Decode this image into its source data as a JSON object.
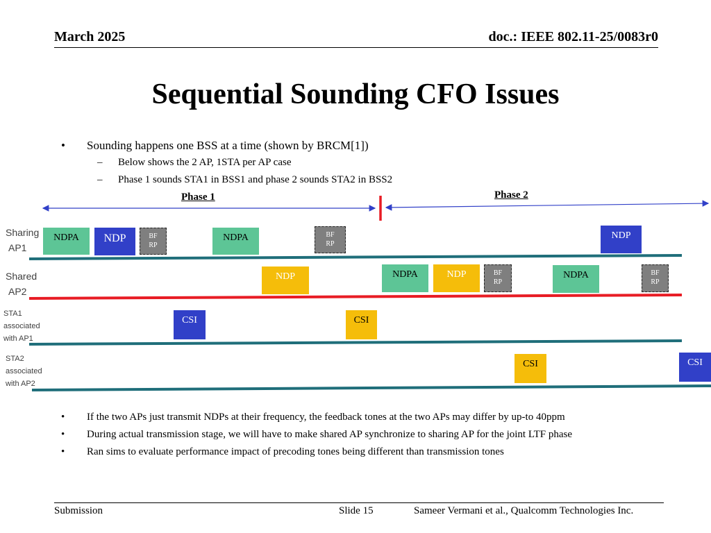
{
  "header": {
    "date": "March 2025",
    "doc": "doc.: IEEE 802.11-25/0083r0"
  },
  "title": "Sequential Sounding CFO Issues",
  "top_bullets": {
    "main": "Sounding happens one BSS at a time (shown by BRCM[1])",
    "sub": [
      "Below shows the 2 AP, 1STA per AP case",
      "Phase 1 sounds STA1 in BSS1 and phase 2 sounds STA2 in BSS2"
    ],
    "dash": "–",
    "dot": "•"
  },
  "diagram": {
    "phase1": "Phase 1",
    "phase2": "Phase 2",
    "rows": {
      "ap1": [
        "Sharing",
        "AP1"
      ],
      "ap2": [
        "Shared",
        "AP2"
      ],
      "sta1": [
        "STA1",
        "associated",
        "with AP1"
      ],
      "sta2": [
        "STA2",
        "associated",
        "with AP2"
      ]
    },
    "frames": {
      "ndpa": "NDPA",
      "ndp": "NDP",
      "csi": "CSI",
      "bf1": "BF",
      "bf2": "RP"
    },
    "colors": {
      "green": "#5dc596",
      "blue": "#3140c8",
      "gold": "#f5bd0a",
      "gray": "#7f7f7f",
      "red_line": "#e81c24",
      "teal_line": "#1f6e7a",
      "arrow": "#3140c8"
    }
  },
  "bottom_bullets": [
    "If the two APs just transmit NDPs at their frequency, the feedback tones at the two APs  may differ by up-to 40ppm",
    "During actual transmission stage, we will have to make shared AP synchronize to sharing AP for the joint LTF phase",
    "Ran sims to evaluate performance impact of precoding tones being different than transmission tones"
  ],
  "footer": {
    "left": "Submission",
    "center": "Slide 15",
    "right": "Sameer Vermani et al., Qualcomm Technologies Inc."
  }
}
